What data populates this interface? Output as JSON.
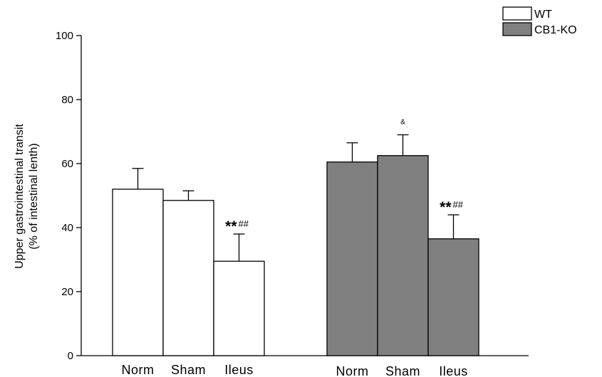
{
  "chart_data": {
    "type": "bar",
    "ylabel": [
      "Upper gastrointestinal transit",
      "(% of intestinal lenth)"
    ],
    "ylim": [
      0,
      100
    ],
    "yticks": [
      "0",
      "20",
      "40",
      "60",
      "80",
      "100"
    ],
    "categories": [
      "Norm",
      "Sham",
      "Ileus"
    ],
    "series": [
      {
        "name": "WT",
        "color": "#ffffff",
        "values": [
          52,
          48.5,
          29.5
        ],
        "errors": [
          6.5,
          3,
          8.5
        ],
        "annotations": [
          "",
          "",
          "** ##"
        ]
      },
      {
        "name": "CB1-KO",
        "color": "#808080",
        "values": [
          60.5,
          62.5,
          36.5
        ],
        "errors": [
          6,
          6.5,
          7.5
        ],
        "annotations": [
          "",
          "&",
          "** ##"
        ]
      }
    ],
    "legend": "top-right",
    "grid": false
  }
}
